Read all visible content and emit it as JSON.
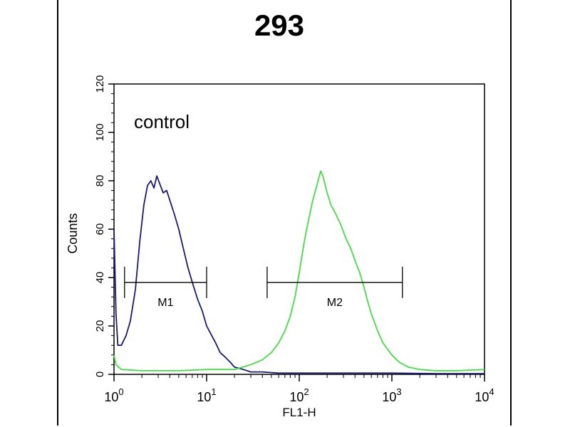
{
  "chart_data": {
    "type": "line",
    "title": "293",
    "annotation": "control",
    "xlabel": "FL1-H",
    "ylabel": "Counts",
    "xscale": "log",
    "xlim": [
      1,
      10000
    ],
    "ylim": [
      0,
      120
    ],
    "yticks": [
      0,
      20,
      40,
      60,
      80,
      100,
      120
    ],
    "xticks": [
      {
        "base": "10",
        "exp": "0",
        "value": 1
      },
      {
        "base": "10",
        "exp": "1",
        "value": 10
      },
      {
        "base": "10",
        "exp": "2",
        "value": 100
      },
      {
        "base": "10",
        "exp": "3",
        "value": 1000
      },
      {
        "base": "10",
        "exp": "4",
        "value": 10000
      }
    ],
    "markers": [
      {
        "label": "M1",
        "from": 1.3,
        "to": 10
      },
      {
        "label": "M2",
        "from": 45,
        "to": 1300
      }
    ],
    "marker_y": 38,
    "series": [
      {
        "color": "#1a1a7a",
        "x": [
          1,
          1.05,
          1.1,
          1.2,
          1.35,
          1.5,
          1.7,
          1.9,
          2.1,
          2.3,
          2.5,
          2.7,
          2.9,
          3.1,
          3.4,
          3.7,
          4.0,
          4.5,
          5.0,
          5.6,
          6.3,
          7.0,
          8.0,
          9.0,
          10,
          11,
          12.5,
          14,
          16,
          18,
          20,
          25,
          30,
          40,
          60,
          100,
          200,
          400,
          1000,
          3000,
          10000
        ],
        "y": [
          60,
          25,
          12,
          12,
          16,
          22,
          35,
          55,
          70,
          78,
          80,
          77,
          82,
          79,
          75,
          76,
          72,
          66,
          60,
          52,
          44,
          38,
          31,
          26,
          20,
          17,
          13,
          9,
          7,
          5,
          3,
          2,
          1,
          1,
          0.5,
          0.5,
          0.5,
          0.5,
          0.5,
          0.3,
          0.3
        ]
      },
      {
        "color": "#44dd44",
        "x": [
          1,
          1.05,
          1.2,
          2,
          5,
          10,
          20,
          30,
          40,
          50,
          60,
          70,
          80,
          90,
          100,
          110,
          120,
          140,
          160,
          170,
          180,
          200,
          220,
          250,
          280,
          320,
          360,
          400,
          450,
          500,
          550,
          600,
          700,
          800,
          1000,
          1200,
          1500,
          2000,
          3000,
          5000,
          10000
        ],
        "y": [
          8,
          4,
          2,
          1.5,
          1.5,
          2,
          2,
          4,
          6,
          9,
          13,
          18,
          24,
          32,
          42,
          52,
          60,
          72,
          80,
          84,
          82,
          75,
          70,
          66,
          62,
          56,
          52,
          47,
          42,
          36,
          30,
          25,
          18,
          13,
          8,
          5,
          3,
          2,
          1.5,
          1.5,
          2
        ]
      }
    ]
  }
}
